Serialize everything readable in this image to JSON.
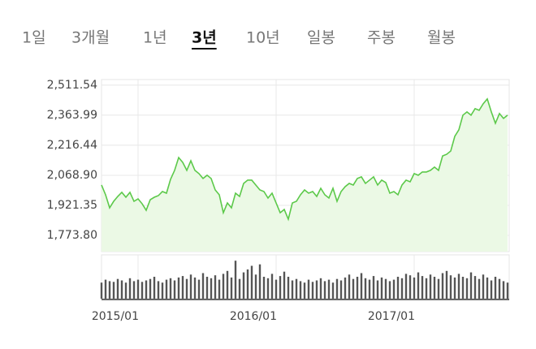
{
  "tabs": {
    "items": [
      "1일",
      "3개월",
      "1년",
      "3년",
      "10년",
      "일봉",
      "주봉",
      "월봉"
    ],
    "selected": 3
  },
  "chart_data": {
    "type": "line",
    "categories": [
      null,
      null,
      null,
      null,
      null,
      null,
      null,
      null,
      null,
      "2015/01",
      null,
      null,
      null,
      null,
      null,
      null,
      null,
      null,
      null,
      null,
      null,
      null,
      null,
      null,
      null,
      null,
      null,
      null,
      null,
      null,
      null,
      null,
      null,
      null,
      null,
      null,
      null,
      null,
      null,
      null,
      null,
      null,
      null,
      "2016/01",
      null,
      null,
      null,
      null,
      null,
      null,
      null,
      null,
      null,
      null,
      null,
      null,
      null,
      null,
      null,
      null,
      null,
      null,
      null,
      null,
      null,
      null,
      null,
      null,
      null,
      null,
      null,
      null,
      null,
      null,
      null,
      null,
      null,
      "2017/01",
      null,
      null,
      null,
      null,
      null,
      null,
      null,
      null,
      null,
      null,
      null,
      null,
      null,
      null,
      null,
      null,
      null,
      null,
      null,
      null,
      null,
      null,
      null
    ],
    "values": [
      2021,
      1973,
      1909,
      1941,
      1965,
      1985,
      1961,
      1985,
      1941,
      1953,
      1929,
      1897,
      1949,
      1961,
      1969,
      1989,
      1981,
      2049,
      2093,
      2156,
      2132,
      2093,
      2140,
      2093,
      2077,
      2053,
      2069,
      2053,
      1997,
      1973,
      1885,
      1933,
      1909,
      1981,
      1965,
      2029,
      2045,
      2045,
      2021,
      1997,
      1989,
      1957,
      1981,
      1933,
      1885,
      1901,
      1853,
      1933,
      1941,
      1973,
      1997,
      1981,
      1989,
      1965,
      2005,
      1973,
      1957,
      2005,
      1941,
      1989,
      2013,
      2029,
      2021,
      2053,
      2061,
      2029,
      2045,
      2061,
      2021,
      2045,
      2033,
      1981,
      1989,
      1973,
      2021,
      2045,
      2037,
      2077,
      2069,
      2085,
      2085,
      2093,
      2109,
      2093,
      2164,
      2172,
      2188,
      2260,
      2292,
      2364,
      2380,
      2364,
      2396,
      2388,
      2420,
      2444,
      2380,
      2324,
      2372,
      2348,
      2364
    ],
    "volume": [
      22,
      26,
      24,
      23,
      27,
      25,
      22,
      28,
      24,
      26,
      23,
      25,
      27,
      30,
      24,
      22,
      26,
      28,
      25,
      29,
      31,
      27,
      33,
      29,
      26,
      35,
      30,
      28,
      32,
      26,
      34,
      38,
      29,
      52,
      27,
      36,
      40,
      45,
      33,
      47,
      30,
      28,
      34,
      26,
      31,
      37,
      30,
      25,
      27,
      24,
      22,
      26,
      23,
      25,
      28,
      24,
      26,
      22,
      27,
      25,
      29,
      33,
      27,
      30,
      35,
      28,
      26,
      31,
      25,
      29,
      27,
      24,
      26,
      30,
      28,
      34,
      32,
      29,
      36,
      31,
      28,
      33,
      30,
      27,
      35,
      38,
      32,
      29,
      34,
      30,
      28,
      36,
      31,
      27,
      33,
      29,
      25,
      30,
      27,
      24,
      22
    ],
    "color": "#5cc94a",
    "fill_color": "#ebf9e5",
    "volume_color": "#555555",
    "ylim": [
      1694,
      2539
    ],
    "yticks": [
      {
        "value": 2511.54,
        "label": "2,511.54"
      },
      {
        "value": 2363.99,
        "label": "2,363.99"
      },
      {
        "value": 2216.44,
        "label": "2,216.44"
      },
      {
        "value": 2068.9,
        "label": "2,068.90"
      },
      {
        "value": 1921.35,
        "label": "1,921.35"
      },
      {
        "value": 1773.8,
        "label": "1,773.80"
      }
    ],
    "volume_lim": [
      0,
      60
    ],
    "grid": true
  }
}
